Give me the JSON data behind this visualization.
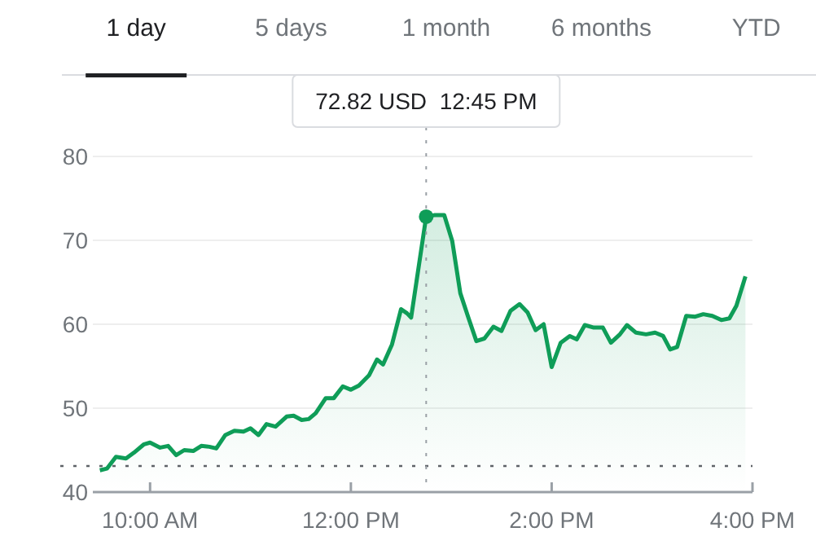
{
  "chart_data": {
    "type": "area",
    "annotations": [
      "1 day",
      "5 days",
      "1 month",
      "6 months",
      "YTD",
      "72.82 USD  12:45 PM"
    ],
    "x": [
      9.5,
      9.57,
      9.66,
      9.76,
      9.84,
      9.94,
      10.0,
      10.1,
      10.18,
      10.26,
      10.34,
      10.43,
      10.51,
      10.59,
      10.66,
      10.75,
      10.84,
      10.93,
      11.0,
      11.08,
      11.16,
      11.25,
      11.36,
      11.43,
      11.51,
      11.58,
      11.65,
      11.75,
      11.83,
      11.92,
      12.0,
      12.08,
      12.18,
      12.26,
      12.32,
      12.41,
      12.5,
      12.56,
      12.6,
      12.75,
      12.83,
      12.93,
      13.01,
      13.09,
      13.17,
      13.25,
      13.33,
      13.42,
      13.5,
      13.59,
      13.68,
      13.76,
      13.84,
      13.92,
      14.0,
      14.09,
      14.18,
      14.25,
      14.33,
      14.42,
      14.51,
      14.59,
      14.68,
      14.75,
      14.84,
      14.94,
      15.03,
      15.11,
      15.18,
      15.25,
      15.34,
      15.43,
      15.51,
      15.6,
      15.69,
      15.77,
      15.84,
      15.93
    ],
    "series": [
      {
        "color": "#0f9d58",
        "values": [
          42.6,
          42.8,
          44.2,
          44.0,
          44.7,
          45.7,
          45.9,
          45.3,
          45.5,
          44.4,
          45.0,
          44.9,
          45.5,
          45.4,
          45.2,
          46.8,
          47.3,
          47.2,
          47.6,
          46.8,
          48.1,
          47.8,
          49.0,
          49.1,
          48.6,
          48.7,
          49.4,
          51.2,
          51.2,
          52.6,
          52.2,
          52.7,
          53.9,
          55.8,
          55.2,
          57.6,
          61.8,
          61.3,
          60.8,
          72.82,
          73.0,
          73.0,
          69.9,
          63.7,
          60.8,
          58.0,
          58.3,
          59.7,
          59.2,
          61.6,
          62.4,
          61.4,
          59.3,
          60.0,
          54.9,
          57.8,
          58.6,
          58.2,
          59.9,
          59.6,
          59.6,
          57.8,
          58.8,
          59.9,
          59.0,
          58.8,
          59.0,
          58.6,
          57.0,
          57.3,
          61.0,
          60.9,
          61.2,
          61.0,
          60.5,
          60.7,
          62.2,
          65.7
        ]
      }
    ],
    "xlim": [
      9.43,
      16.0
    ],
    "xticks": [
      {
        "value": 10,
        "label": "10:00 AM"
      },
      {
        "value": 12,
        "label": "12:00 PM"
      },
      {
        "value": 14,
        "label": "2:00 PM"
      },
      {
        "value": 16,
        "label": "4:00 PM"
      }
    ],
    "ylim": [
      40,
      80
    ],
    "yticks": [
      40,
      50,
      60,
      70,
      80
    ],
    "grid": "y",
    "marker": "none",
    "line_style": "solid",
    "ref_lines": [
      {
        "axis": "y",
        "value": 43.1,
        "color": "#5f6368",
        "line_style": "dotted"
      },
      {
        "axis": "x",
        "value": 12.75,
        "color": "#9aa0a6",
        "line_style": "dotted"
      }
    ]
  }
}
